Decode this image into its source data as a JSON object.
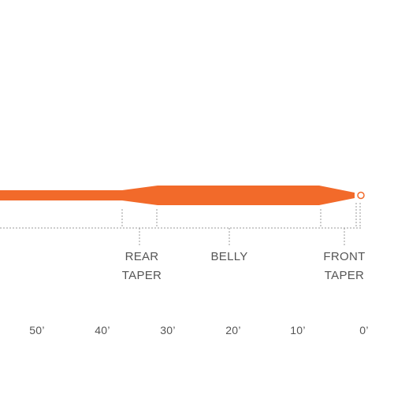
{
  "colors": {
    "line": "#f26a2a",
    "guide": "#9a9a9a",
    "text": "#555555",
    "background": "#ffffff"
  },
  "sections": {
    "rear_taper": {
      "line1": "REAR",
      "line2": "TAPER"
    },
    "belly": {
      "line1": "BELLY"
    },
    "front_taper": {
      "line1": "FRONT",
      "line2": "TAPER"
    }
  },
  "scale": {
    "unit": "feet",
    "ticks": [
      "50’",
      "40’",
      "30’",
      "20’",
      "10’",
      "0’"
    ]
  }
}
